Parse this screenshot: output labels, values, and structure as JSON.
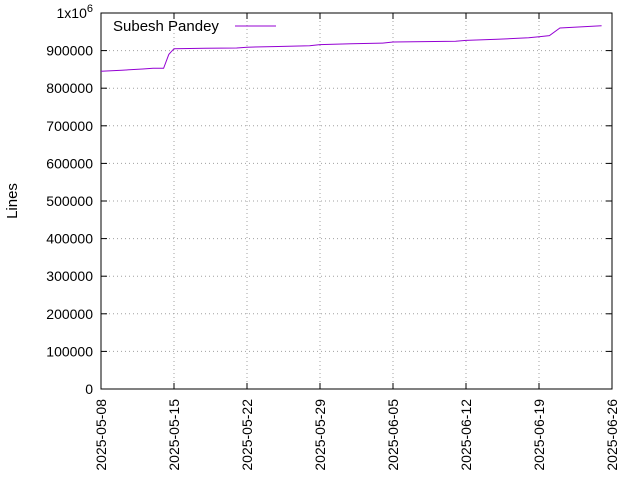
{
  "chart_data": {
    "type": "line",
    "ylabel": "Lines",
    "ylim": [
      0,
      1000000
    ],
    "y_ticks": [
      0,
      100000,
      200000,
      300000,
      400000,
      500000,
      600000,
      700000,
      800000,
      900000
    ],
    "y_tick_labels": [
      "0",
      "100000",
      "200000",
      "300000",
      "400000",
      "500000",
      "600000",
      "700000",
      "800000",
      "900000"
    ],
    "y_top_label_base": "1x10",
    "y_top_label_exp": "6",
    "xlim": [
      "2025-05-08",
      "2025-06-26"
    ],
    "x_ticks": [
      "2025-05-08",
      "2025-05-15",
      "2025-05-22",
      "2025-05-29",
      "2025-06-05",
      "2025-06-12",
      "2025-06-19",
      "2025-06-26"
    ],
    "grid": true,
    "legend_position": "top-left",
    "series": [
      {
        "name": "Subesh Pandey",
        "color": "#9400d3",
        "x": [
          "2025-05-08",
          "2025-05-10",
          "2025-05-12",
          "2025-05-13",
          "2025-05-14",
          "2025-05-14T12:00",
          "2025-05-15",
          "2025-05-18",
          "2025-05-21",
          "2025-05-22",
          "2025-05-25",
          "2025-05-28",
          "2025-05-29",
          "2025-06-01",
          "2025-06-04",
          "2025-06-05",
          "2025-06-08",
          "2025-06-11",
          "2025-06-12",
          "2025-06-15",
          "2025-06-18",
          "2025-06-19",
          "2025-06-20",
          "2025-06-21",
          "2025-06-23",
          "2025-06-25"
        ],
        "y": [
          845000,
          848000,
          851000,
          853000,
          853000,
          890000,
          905000,
          906000,
          907000,
          909000,
          911000,
          913000,
          916000,
          918000,
          920000,
          923000,
          924000,
          925000,
          927000,
          930000,
          934000,
          937000,
          940000,
          960000,
          963000,
          966000
        ]
      }
    ]
  }
}
